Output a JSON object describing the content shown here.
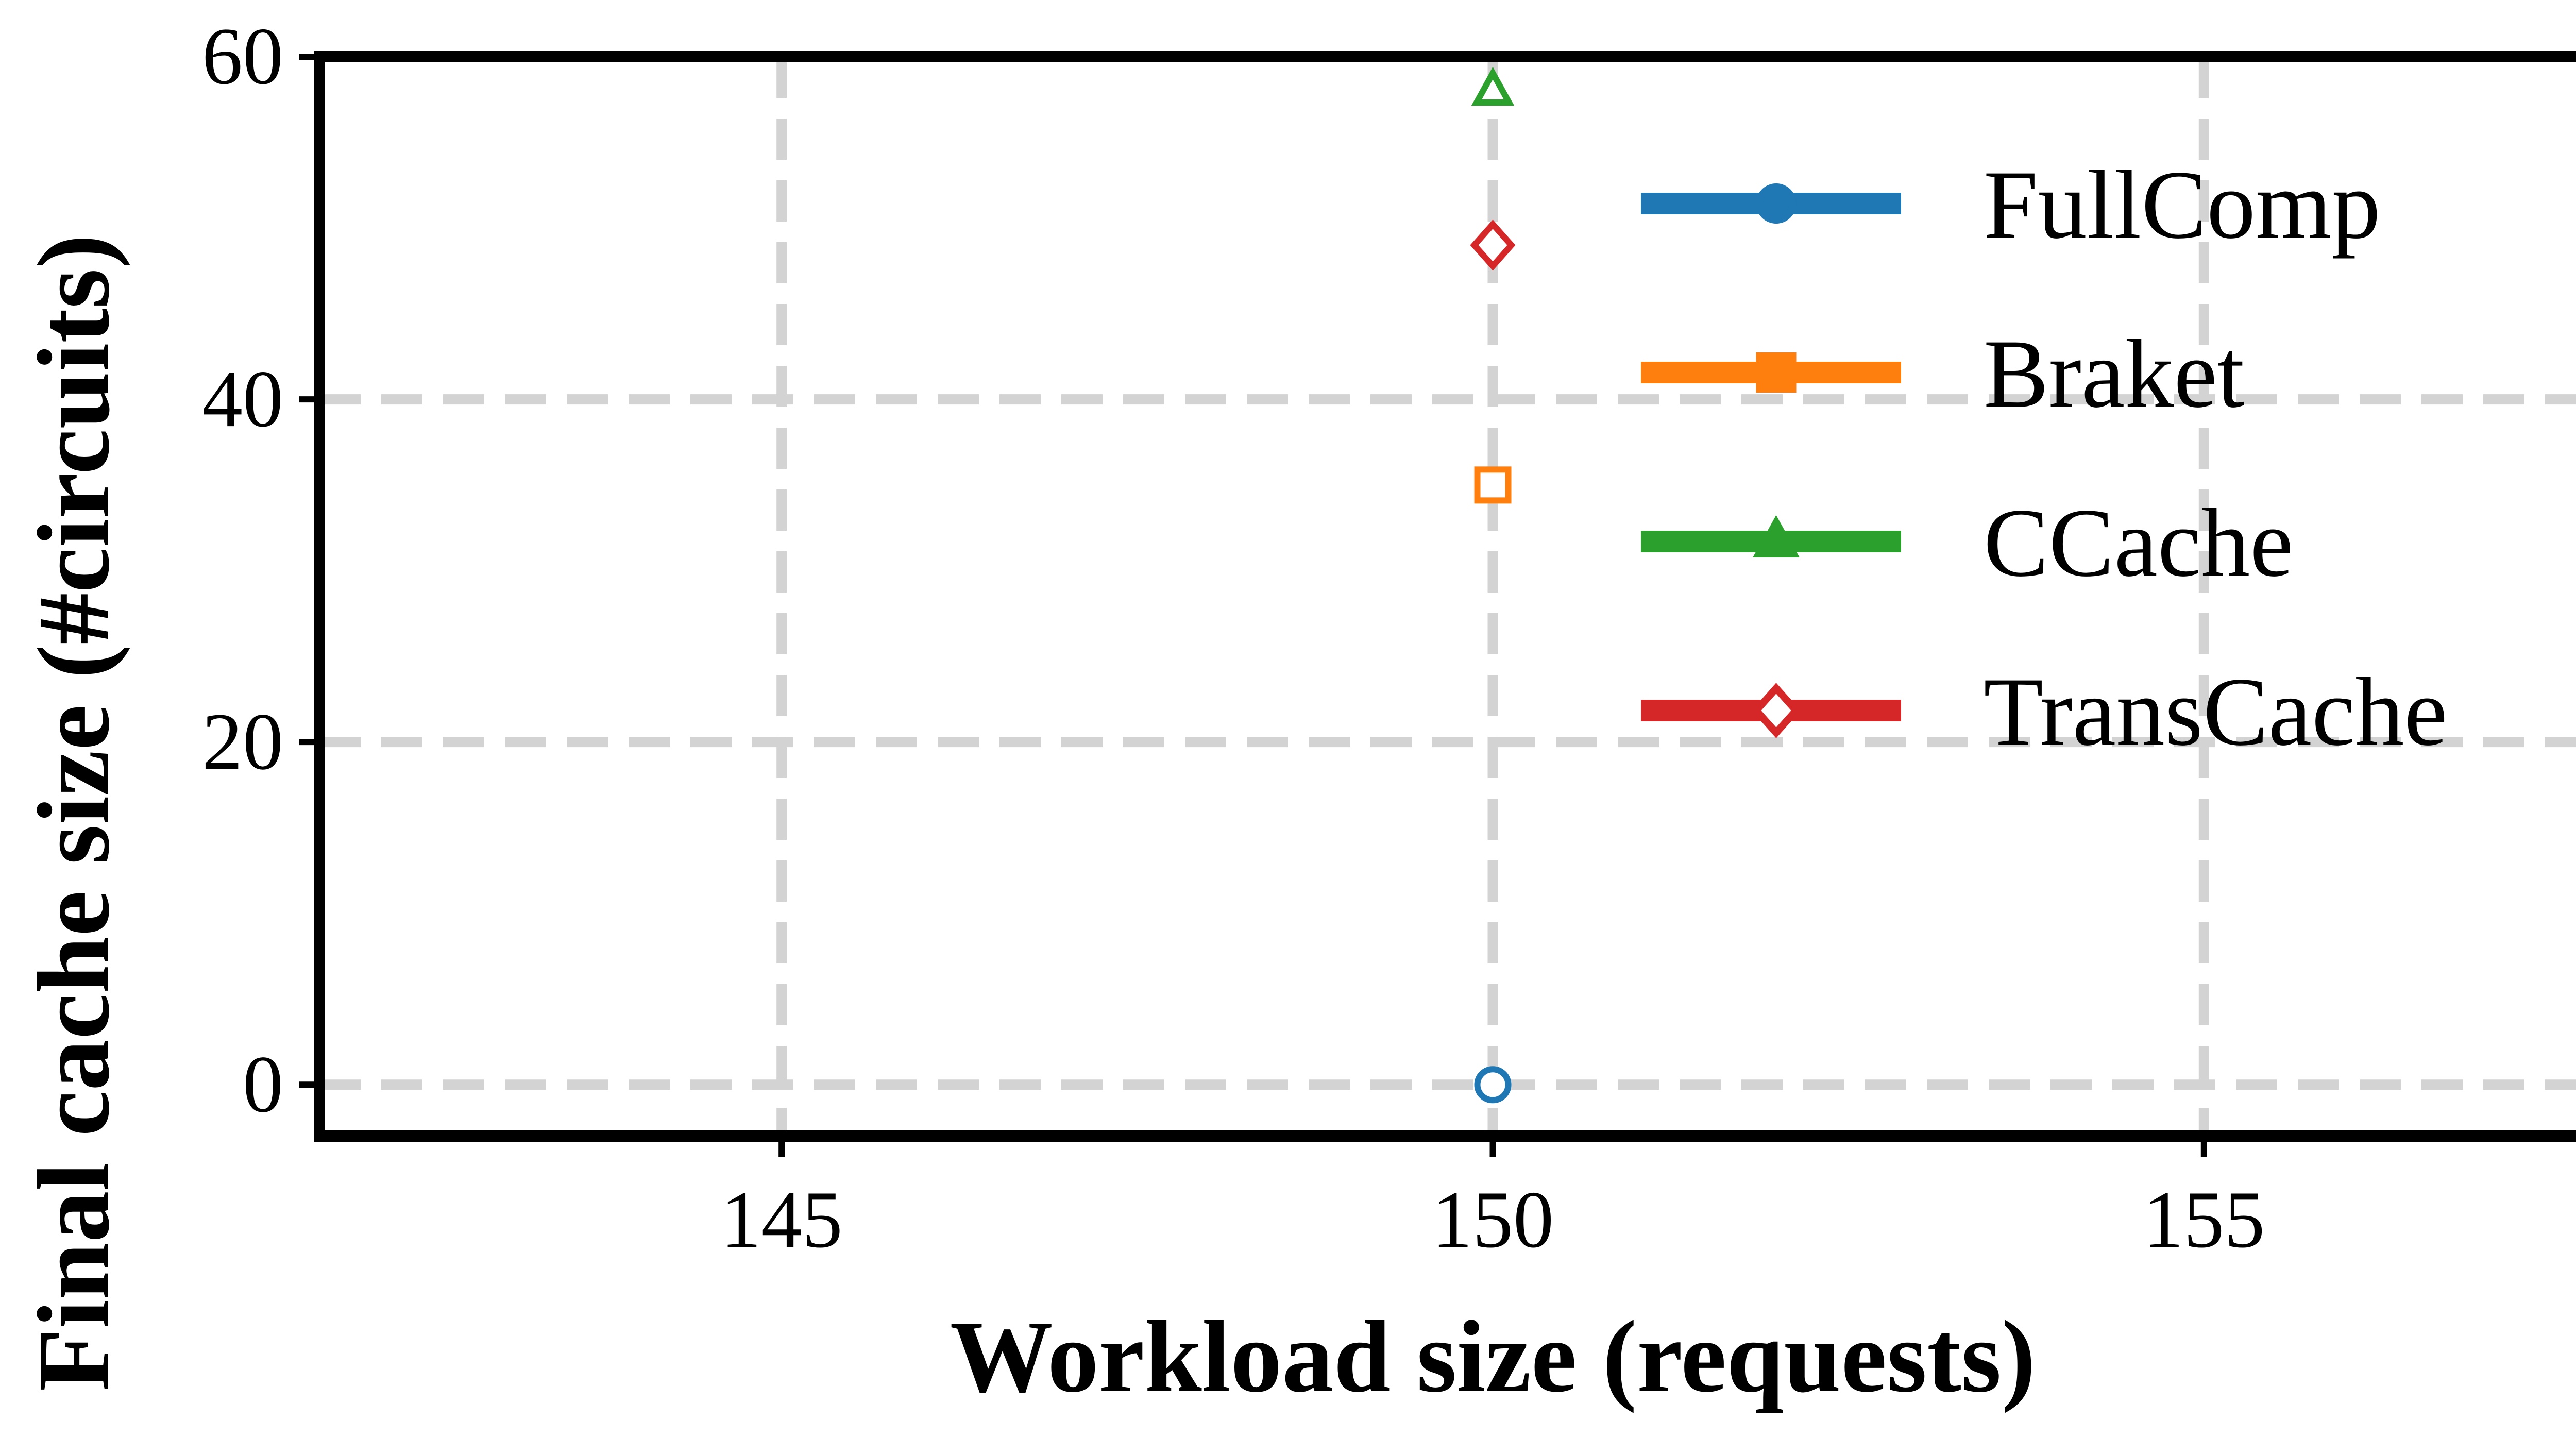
{
  "chart_data": {
    "type": "scatter",
    "xlabel": "Workload size (requests)",
    "ylabel": "Final cache size (#circuits)",
    "xlim": [
      141.75,
      158.25
    ],
    "ylim": [
      -3,
      60
    ],
    "xticks": [
      145,
      150,
      155
    ],
    "yticks": [
      0,
      20,
      40,
      60
    ],
    "grid": true,
    "legend_position": "upper-right",
    "series": [
      {
        "name": "FullComp",
        "color": "#1f77b4",
        "marker": "circle",
        "points": [
          {
            "x": 150,
            "y": 0
          }
        ]
      },
      {
        "name": "Braket",
        "color": "#ff7f0e",
        "marker": "square",
        "points": [
          {
            "x": 150,
            "y": 35
          }
        ]
      },
      {
        "name": "CCache",
        "color": "#2ca02c",
        "marker": "triangle",
        "points": [
          {
            "x": 150,
            "y": 58
          }
        ]
      },
      {
        "name": "TransCache",
        "color": "#d62728",
        "marker": "diamond",
        "points": [
          {
            "x": 150,
            "y": 49
          }
        ]
      }
    ]
  }
}
